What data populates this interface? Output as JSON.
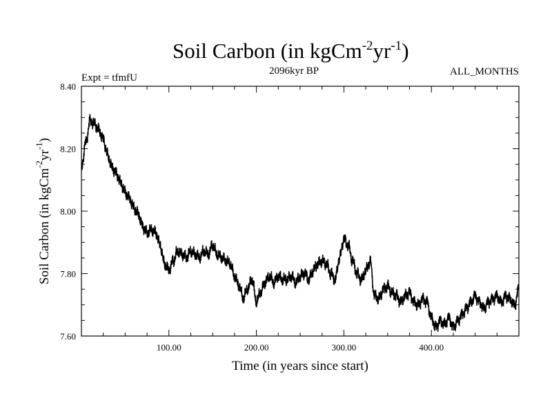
{
  "chart_data": {
    "type": "line",
    "title": "Soil Carbon (in kgCm",
    "title_units": {
      "exp1": "-2",
      "mid": "yr",
      "exp2": "-1",
      "close": ")"
    },
    "expt_label": "Expt = tfmfU",
    "period_label": "2096kyr BP",
    "months_label": "ALL_MONTHS",
    "xlabel": "Time (in years since start)",
    "ylabel": "Soil Carbon (in kgCm",
    "ylabel_units": {
      "exp1": "-2",
      "mid": "yr",
      "exp2": "-1",
      "close": ")"
    },
    "xlim": [
      0,
      500
    ],
    "ylim": [
      7.6,
      8.4
    ],
    "xticks": [
      100,
      200,
      300,
      400
    ],
    "xtick_labels": [
      "100.00",
      "200.00",
      "300.00",
      "400.00"
    ],
    "yticks": [
      7.6,
      7.8,
      8.0,
      8.2,
      8.4
    ],
    "ytick_labels": [
      "7.60",
      "7.80",
      "8.00",
      "8.20",
      "8.40"
    ],
    "series": [
      {
        "name": "soil carbon",
        "color": "#000000",
        "x": [
          0,
          5,
          10,
          15,
          20,
          25,
          30,
          35,
          40,
          45,
          50,
          55,
          60,
          65,
          70,
          75,
          80,
          85,
          90,
          95,
          100,
          105,
          110,
          115,
          120,
          125,
          130,
          135,
          140,
          145,
          150,
          155,
          160,
          165,
          170,
          175,
          180,
          185,
          190,
          195,
          200,
          205,
          210,
          215,
          220,
          225,
          230,
          235,
          240,
          245,
          250,
          255,
          260,
          265,
          270,
          275,
          280,
          285,
          290,
          295,
          300,
          305,
          310,
          315,
          320,
          325,
          330,
          335,
          340,
          345,
          350,
          355,
          360,
          365,
          370,
          375,
          380,
          385,
          390,
          395,
          400,
          405,
          410,
          415,
          420,
          425,
          430,
          435,
          440,
          445,
          450,
          455,
          460,
          465,
          470,
          475,
          480,
          485,
          490,
          495,
          500
        ],
        "values": [
          8.14,
          8.22,
          8.29,
          8.28,
          8.26,
          8.23,
          8.18,
          8.14,
          8.12,
          8.09,
          8.06,
          8.04,
          8.01,
          7.99,
          7.95,
          7.93,
          7.94,
          7.93,
          7.89,
          7.83,
          7.81,
          7.84,
          7.87,
          7.86,
          7.85,
          7.87,
          7.86,
          7.85,
          7.87,
          7.86,
          7.89,
          7.86,
          7.85,
          7.84,
          7.83,
          7.79,
          7.76,
          7.72,
          7.75,
          7.78,
          7.71,
          7.74,
          7.77,
          7.79,
          7.77,
          7.79,
          7.78,
          7.78,
          7.79,
          7.77,
          7.79,
          7.8,
          7.78,
          7.81,
          7.83,
          7.84,
          7.83,
          7.8,
          7.78,
          7.85,
          7.91,
          7.89,
          7.84,
          7.8,
          7.78,
          7.81,
          7.84,
          7.73,
          7.72,
          7.75,
          7.76,
          7.74,
          7.73,
          7.71,
          7.73,
          7.74,
          7.71,
          7.7,
          7.72,
          7.71,
          7.66,
          7.63,
          7.65,
          7.64,
          7.66,
          7.63,
          7.65,
          7.67,
          7.69,
          7.71,
          7.73,
          7.71,
          7.69,
          7.71,
          7.72,
          7.73,
          7.71,
          7.73,
          7.72,
          7.7,
          7.75
        ]
      }
    ],
    "grid": false
  }
}
